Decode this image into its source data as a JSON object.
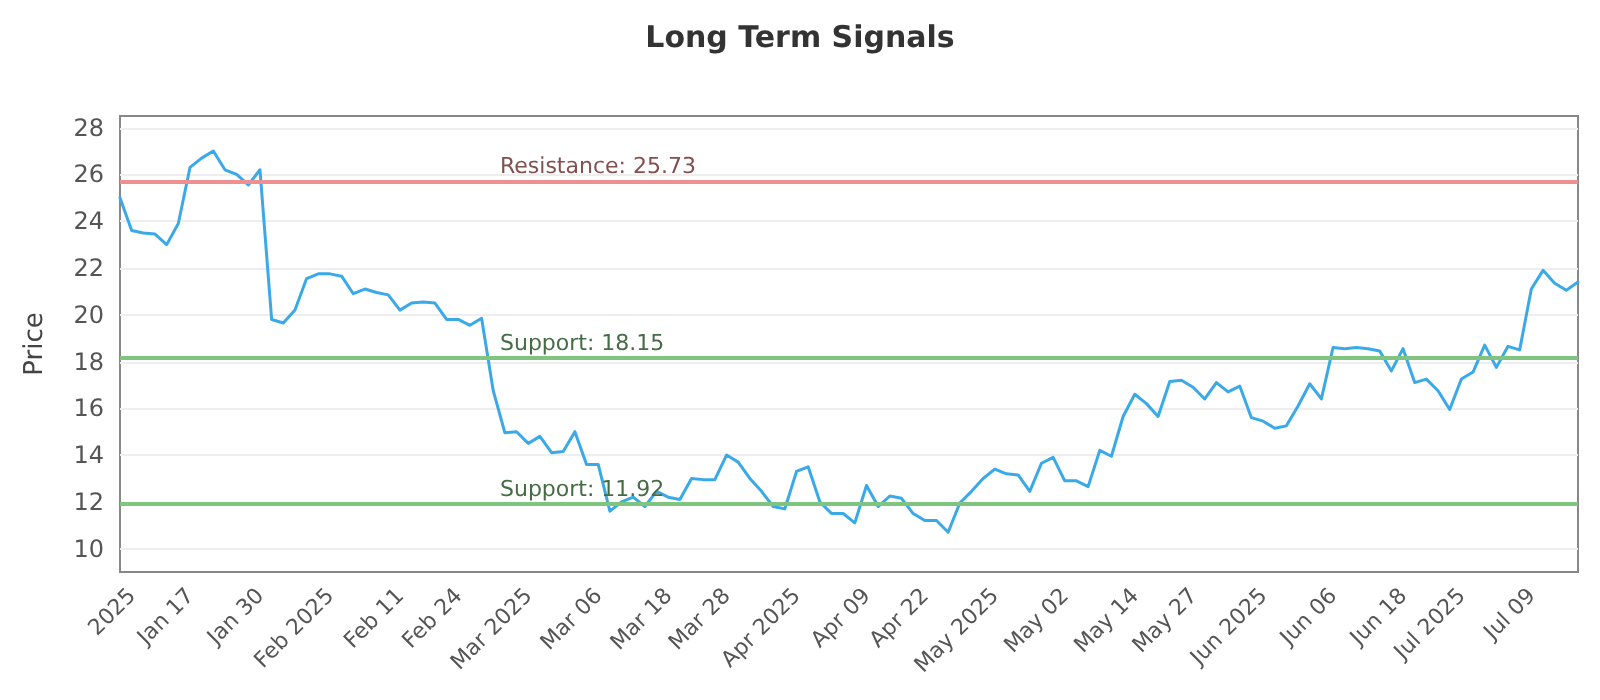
{
  "chart_data": {
    "type": "line",
    "title": "Long Term Signals",
    "ylabel": "Price",
    "categories": [
      null,
      "2025",
      null,
      null,
      null,
      null,
      "Jan 17",
      null,
      null,
      null,
      null,
      null,
      "Jan 30",
      null,
      null,
      null,
      null,
      null,
      "Feb 2025",
      null,
      null,
      null,
      null,
      null,
      "Feb 11",
      null,
      null,
      null,
      null,
      "Feb 24",
      null,
      null,
      null,
      null,
      null,
      "Mar 2025",
      null,
      null,
      null,
      null,
      null,
      "Mar 06",
      null,
      null,
      null,
      null,
      null,
      "Mar 18",
      null,
      null,
      null,
      null,
      "Mar 28",
      null,
      null,
      null,
      null,
      null,
      "Apr 2025",
      null,
      null,
      null,
      null,
      null,
      "Apr 09",
      null,
      null,
      null,
      null,
      "Apr 22",
      null,
      null,
      null,
      null,
      null,
      "May 2025",
      null,
      null,
      null,
      null,
      null,
      "May 02",
      null,
      null,
      null,
      null,
      null,
      "May 14",
      null,
      null,
      null,
      null,
      "May 27",
      null,
      null,
      null,
      null,
      null,
      "Jun 2025",
      null,
      null,
      null,
      null,
      null,
      "Jun 06",
      null,
      null,
      null,
      null,
      null,
      "Jun 18",
      null,
      null,
      null,
      null,
      "Jul 2025",
      null,
      null,
      null,
      null,
      null,
      "Jul 09",
      null,
      null,
      null,
      null
    ],
    "series": [
      {
        "color": "#3aa9e8",
        "values": [
          25.0,
          23.6,
          23.5,
          23.45,
          23.0,
          23.9,
          26.3,
          26.7,
          27.0,
          26.2,
          26.0,
          25.55,
          26.2,
          19.8,
          19.65,
          20.2,
          21.55,
          21.75,
          21.75,
          21.65,
          20.9,
          21.1,
          20.95,
          20.85,
          20.2,
          20.5,
          20.55,
          20.5,
          19.8,
          19.8,
          19.55,
          19.85,
          16.75,
          14.95,
          15.0,
          14.5,
          14.8,
          14.1,
          14.15,
          15.0,
          13.6,
          13.6,
          11.6,
          12.0,
          12.2,
          11.8,
          12.45,
          12.2,
          12.1,
          13.0,
          12.95,
          12.95,
          14.0,
          13.7,
          13.0,
          12.45,
          11.8,
          11.7,
          13.3,
          13.5,
          12.0,
          11.5,
          11.5,
          11.1,
          12.7,
          11.8,
          12.25,
          12.15,
          11.5,
          11.2,
          11.2,
          10.7,
          11.95,
          12.45,
          13.0,
          13.4,
          13.2,
          13.15,
          12.45,
          13.65,
          13.9,
          12.9,
          12.9,
          12.65,
          14.2,
          13.95,
          15.65,
          16.6,
          16.2,
          15.65,
          17.15,
          17.2,
          16.9,
          16.4,
          17.1,
          16.7,
          16.95,
          15.6,
          15.45,
          15.15,
          15.25,
          16.1,
          17.05,
          16.4,
          18.6,
          18.55,
          18.6,
          18.55,
          18.45,
          17.6,
          18.55,
          17.1,
          17.25,
          16.75,
          15.95,
          17.25,
          17.55,
          18.7,
          17.75,
          18.65,
          18.5,
          21.1,
          21.9,
          21.35,
          21.05,
          21.4
        ]
      }
    ],
    "ylim": [
      9,
      28.5
    ],
    "yticks": [
      10,
      12,
      14,
      16,
      18,
      20,
      22,
      24,
      26,
      28
    ],
    "grid": "y",
    "marker": "none",
    "line_style": "solid",
    "ref_lines": [
      {
        "axis": "y",
        "value": 25.73,
        "label": "Resistance: 25.73",
        "color": "#ef8f8f"
      },
      {
        "axis": "y",
        "value": 18.15,
        "label": "Support: 18.15",
        "color": "#7fc47f"
      },
      {
        "axis": "y",
        "value": 11.92,
        "label": "Support: 11.92",
        "color": "#7fc47f"
      }
    ]
  }
}
